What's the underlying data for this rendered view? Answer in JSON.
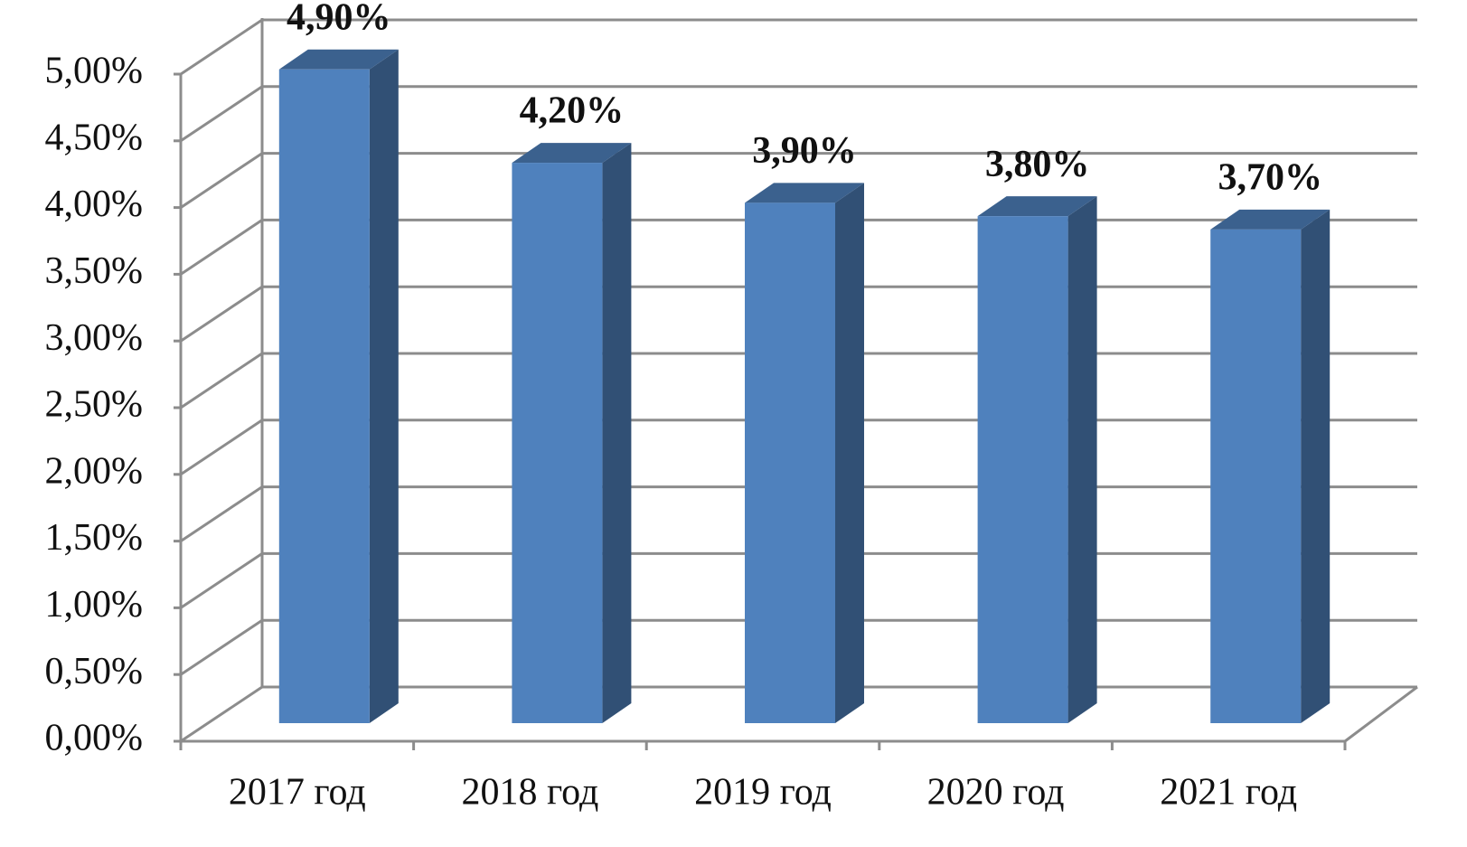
{
  "chart_data": {
    "type": "bar3d",
    "categories": [
      "2017 год",
      "2018 год",
      "2019 год",
      "2020 год",
      "2021 год"
    ],
    "values": [
      4.9,
      4.2,
      3.9,
      3.8,
      3.7
    ],
    "value_labels": [
      "4,90%",
      "4,20%",
      "3,90%",
      "3,80%",
      "3,70%"
    ],
    "color": "#4f81bd",
    "label_color": "#e00000",
    "ylim": [
      0,
      5
    ],
    "yticks": [
      {
        "value": 0,
        "label": "0,00%"
      },
      {
        "value": 0.5,
        "label": "0,50%"
      },
      {
        "value": 1,
        "label": "1,00%"
      },
      {
        "value": 1.5,
        "label": "1,50%"
      },
      {
        "value": 2,
        "label": "2,00%"
      },
      {
        "value": 2.5,
        "label": "2,50%"
      },
      {
        "value": 3,
        "label": "3,00%"
      },
      {
        "value": 3.5,
        "label": "3,50%"
      },
      {
        "value": 4,
        "label": "4,00%"
      },
      {
        "value": 4.5,
        "label": "4,50%"
      },
      {
        "value": 5,
        "label": "5,00%"
      }
    ],
    "grid": true
  }
}
